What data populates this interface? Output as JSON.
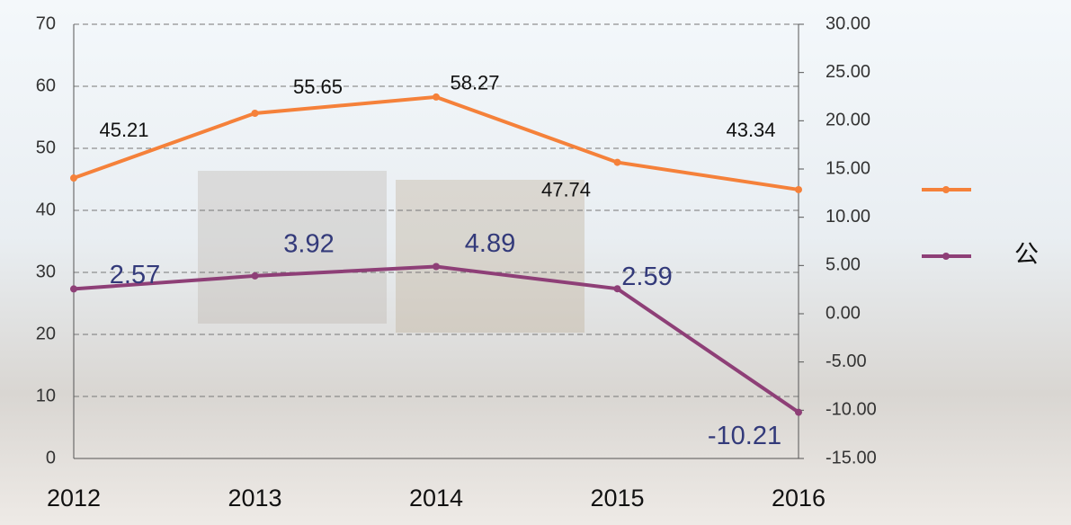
{
  "chart_data": {
    "type": "line",
    "categories": [
      "2012",
      "2013",
      "2014",
      "2015",
      "2016"
    ],
    "series": [
      {
        "color": "#f5813a",
        "values": [
          45.21,
          55.65,
          58.27,
          47.74,
          43.34
        ]
      },
      {
        "name": "公",
        "color": "#8e3f77",
        "axis": "y2",
        "values": [
          2.57,
          3.92,
          4.89,
          2.59,
          -10.21
        ]
      }
    ],
    "ylim": [
      0,
      70
    ],
    "yticks": [
      0,
      10,
      20,
      30,
      40,
      50,
      60,
      70
    ],
    "y2lim": [
      -15,
      30
    ],
    "y2ticks": [
      {
        "value": -15,
        "label": "-15.00"
      },
      {
        "value": -10,
        "label": "-10.00"
      },
      {
        "value": -5,
        "label": "-5.00"
      },
      {
        "value": 0,
        "label": "0.00"
      },
      {
        "value": 5,
        "label": "5.00"
      },
      {
        "value": 10,
        "label": "10.00"
      },
      {
        "value": 15,
        "label": "15.00"
      },
      {
        "value": 20,
        "label": "20.00"
      },
      {
        "value": 25,
        "label": "25.00"
      },
      {
        "value": 30,
        "label": "30.00"
      }
    ],
    "grid": true
  }
}
